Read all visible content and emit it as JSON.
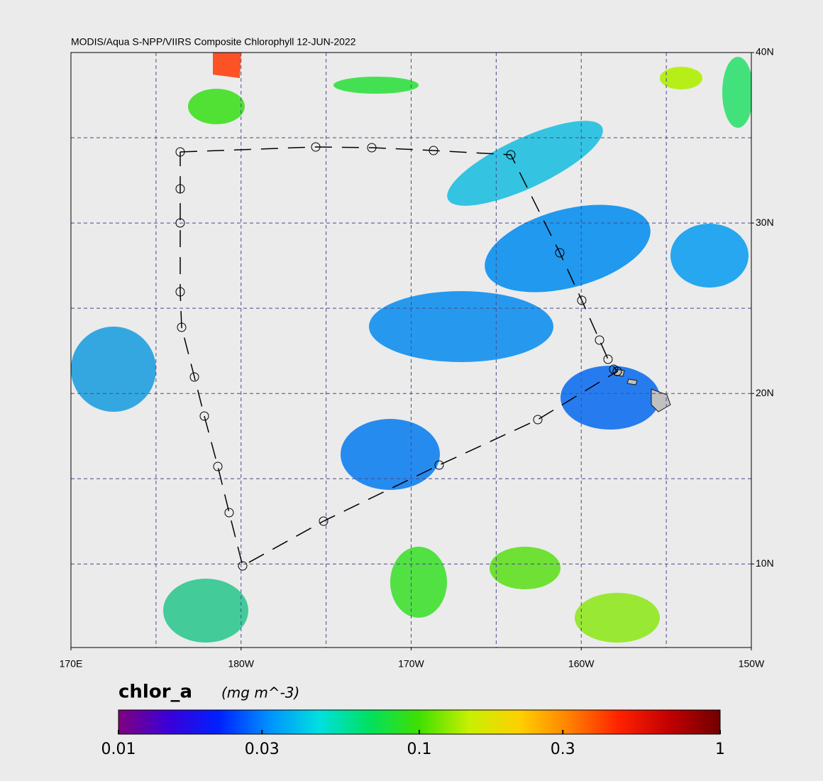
{
  "chart_data": {
    "type": "map",
    "title": "MODIS/Aqua S-NPP/VIIRS Composite Chlorophyll 12-JUN-2022",
    "xlim": [
      170,
      210
    ],
    "ylim": [
      5.1,
      40
    ],
    "xticks": [
      {
        "value": 170,
        "label": "170E"
      },
      {
        "value": 180,
        "label": "180W"
      },
      {
        "value": 190,
        "label": "170W"
      },
      {
        "value": 200,
        "label": "160W"
      },
      {
        "value": 210,
        "label": "150W"
      }
    ],
    "yticks": [
      {
        "value": 40,
        "label": "40N"
      },
      {
        "value": 30,
        "label": "30N"
      },
      {
        "value": 20,
        "label": "20N"
      },
      {
        "value": 10,
        "label": "10N"
      }
    ],
    "xgrid": [
      175,
      180,
      185,
      190,
      195,
      200,
      205
    ],
    "ygrid": [
      35,
      30,
      25,
      20,
      15,
      10
    ],
    "grid_color": "#4a4a8a",
    "colorbar": {
      "label": "chlor_a",
      "units": "(mg m^-3)",
      "log": true,
      "lim": [
        0.01,
        1
      ],
      "ticks": [
        0.01,
        0.03,
        0.1,
        0.3,
        1
      ],
      "colors": [
        "#80007f",
        "#3a00d8",
        "#0020ff",
        "#0090ff",
        "#00e0e0",
        "#00e060",
        "#40e000",
        "#c8f000",
        "#ffd000",
        "#ff8000",
        "#ff2000",
        "#c00000",
        "#700000"
      ]
    }
  }
}
